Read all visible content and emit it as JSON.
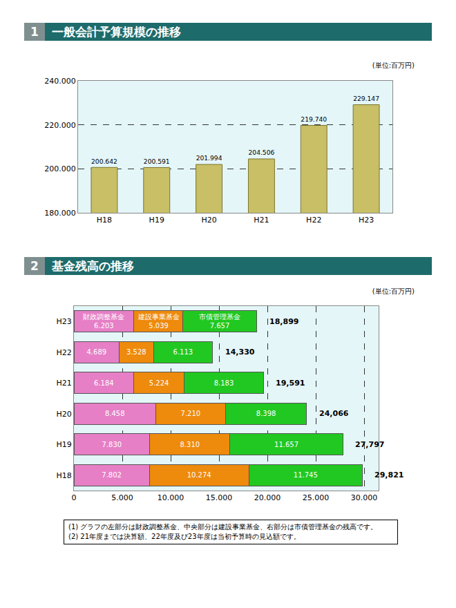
{
  "chart_data": [
    {
      "type": "bar",
      "title": "1　一般会計予算規模の推移",
      "subtitle": "(単位:百万円)",
      "categories": [
        "H18",
        "H19",
        "H20",
        "H21",
        "H22",
        "H23"
      ],
      "values": [
        200642,
        200591,
        201994,
        204506,
        219740,
        229147
      ],
      "value_labels": [
        "200.642",
        "200.591",
        "201.994",
        "204.506",
        "219.740",
        "229.147"
      ],
      "color": "#c8bf66",
      "data_labels": true,
      "grid": true,
      "ylim": [
        180000,
        240000
      ],
      "yticks": [
        {
          "value": 180000,
          "label": "180.000"
        },
        {
          "value": 200000,
          "label": "200.000"
        },
        {
          "value": 220000,
          "label": "220.000"
        },
        {
          "value": 240000,
          "label": "240.000"
        }
      ]
    },
    {
      "type": "bar",
      "orientation": "horizontal",
      "stacked": true,
      "title": "2　基金残高の推移",
      "subtitle": "(単位:百万円)",
      "categories": [
        "H23",
        "H22",
        "H21",
        "H20",
        "H19",
        "H18"
      ],
      "series": [
        {
          "name": "財政調整基金",
          "color": "#e67fc6",
          "values": [
            6203,
            4689,
            6184,
            8458,
            7830,
            7802
          ],
          "value_labels": [
            "6.203",
            "4.689",
            "6.184",
            "8.458",
            "7.830",
            "7.802"
          ]
        },
        {
          "name": "建設事業基金",
          "color": "#ee8a0c",
          "values": [
            5039,
            3528,
            5224,
            7210,
            8310,
            10274
          ],
          "value_labels": [
            "5.039",
            "3.528",
            "5.224",
            "7.210",
            "8.310",
            "10.274"
          ]
        },
        {
          "name": "市債管理基金",
          "color": "#21c821",
          "values": [
            7657,
            6113,
            8183,
            8398,
            11657,
            11745
          ],
          "value_labels": [
            "7.657",
            "6.113",
            "8.183",
            "8.398",
            "11.657",
            "11.745"
          ]
        }
      ],
      "totals": {
        "values": [
          18899,
          14330,
          19591,
          24066,
          27797,
          29821
        ],
        "value_labels": [
          "18,899",
          "14,330",
          "19,591",
          "24,066",
          "27,797",
          "29,821"
        ]
      },
      "data_labels": true,
      "grid": true,
      "xlim": [
        0,
        31500
      ],
      "xticks": [
        0,
        {
          "value": 5000,
          "label": "5.000"
        },
        {
          "value": 10000,
          "label": "10.000"
        },
        {
          "value": 15000,
          "label": "15.000"
        },
        {
          "value": 20000,
          "label": "20.000"
        },
        {
          "value": 25000,
          "label": "25.000"
        },
        {
          "value": 30000,
          "label": "30.000"
        }
      ],
      "annotations": [
        "(1) グラフの左部分は財政調整基金、中央部分は建設事業基金、右部分は市債管理基金の残高です。",
        "(2) 21年度までは決算額、22年度及び23年度は当初予算時の見込額です。"
      ]
    }
  ]
}
